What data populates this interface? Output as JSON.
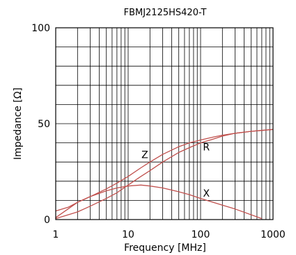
{
  "chart_data": {
    "type": "line",
    "title": "FBMJ2125HS420-T",
    "xlabel": "Frequency [MHz]",
    "ylabel": "Impedance [Ω]",
    "x_scale": "log",
    "xlim": [
      1,
      1000
    ],
    "ylim": [
      0,
      100
    ],
    "x_ticks": [
      1,
      10,
      100,
      1000
    ],
    "x_tick_labels": [
      "1",
      "10",
      "100",
      "1000"
    ],
    "y_ticks": [
      0,
      50,
      100
    ],
    "y_tick_labels": [
      "0",
      "50",
      "100"
    ],
    "grid": true,
    "line_color": "#c0504d",
    "series": [
      {
        "name": "Z",
        "x": [
          1,
          1.5,
          2,
          3,
          5,
          7,
          10,
          15,
          20,
          30,
          50,
          70,
          100,
          150,
          200,
          300,
          500,
          700,
          1000
        ],
        "y": [
          4.5,
          6.5,
          9,
          12,
          16,
          19,
          22.5,
          27,
          30,
          34,
          38,
          40,
          41.5,
          43,
          44,
          45,
          46,
          46.5,
          47
        ]
      },
      {
        "name": "R",
        "x": [
          1,
          2,
          3,
          5,
          7,
          10,
          15,
          20,
          30,
          50,
          70,
          100,
          150,
          200,
          300,
          500,
          700,
          1000
        ],
        "y": [
          0.5,
          4,
          7,
          11,
          14,
          18,
          22.5,
          25.5,
          30,
          35,
          37.5,
          40,
          42,
          43.5,
          45,
          46,
          46.5,
          47
        ]
      },
      {
        "name": "X",
        "x": [
          1,
          2,
          3,
          5,
          7,
          10,
          15,
          20,
          30,
          50,
          70,
          100,
          150,
          200,
          300,
          500,
          700
        ],
        "y": [
          1,
          9,
          12,
          15,
          16.5,
          17.5,
          18,
          17.5,
          16.5,
          14.5,
          13,
          11,
          9,
          7.5,
          5.5,
          2.5,
          0.5
        ]
      }
    ],
    "curve_labels": [
      {
        "text": "Z",
        "x": 17,
        "y": 32
      },
      {
        "text": "R",
        "x": 120,
        "y": 36
      },
      {
        "text": "X",
        "x": 120,
        "y": 12
      }
    ]
  }
}
